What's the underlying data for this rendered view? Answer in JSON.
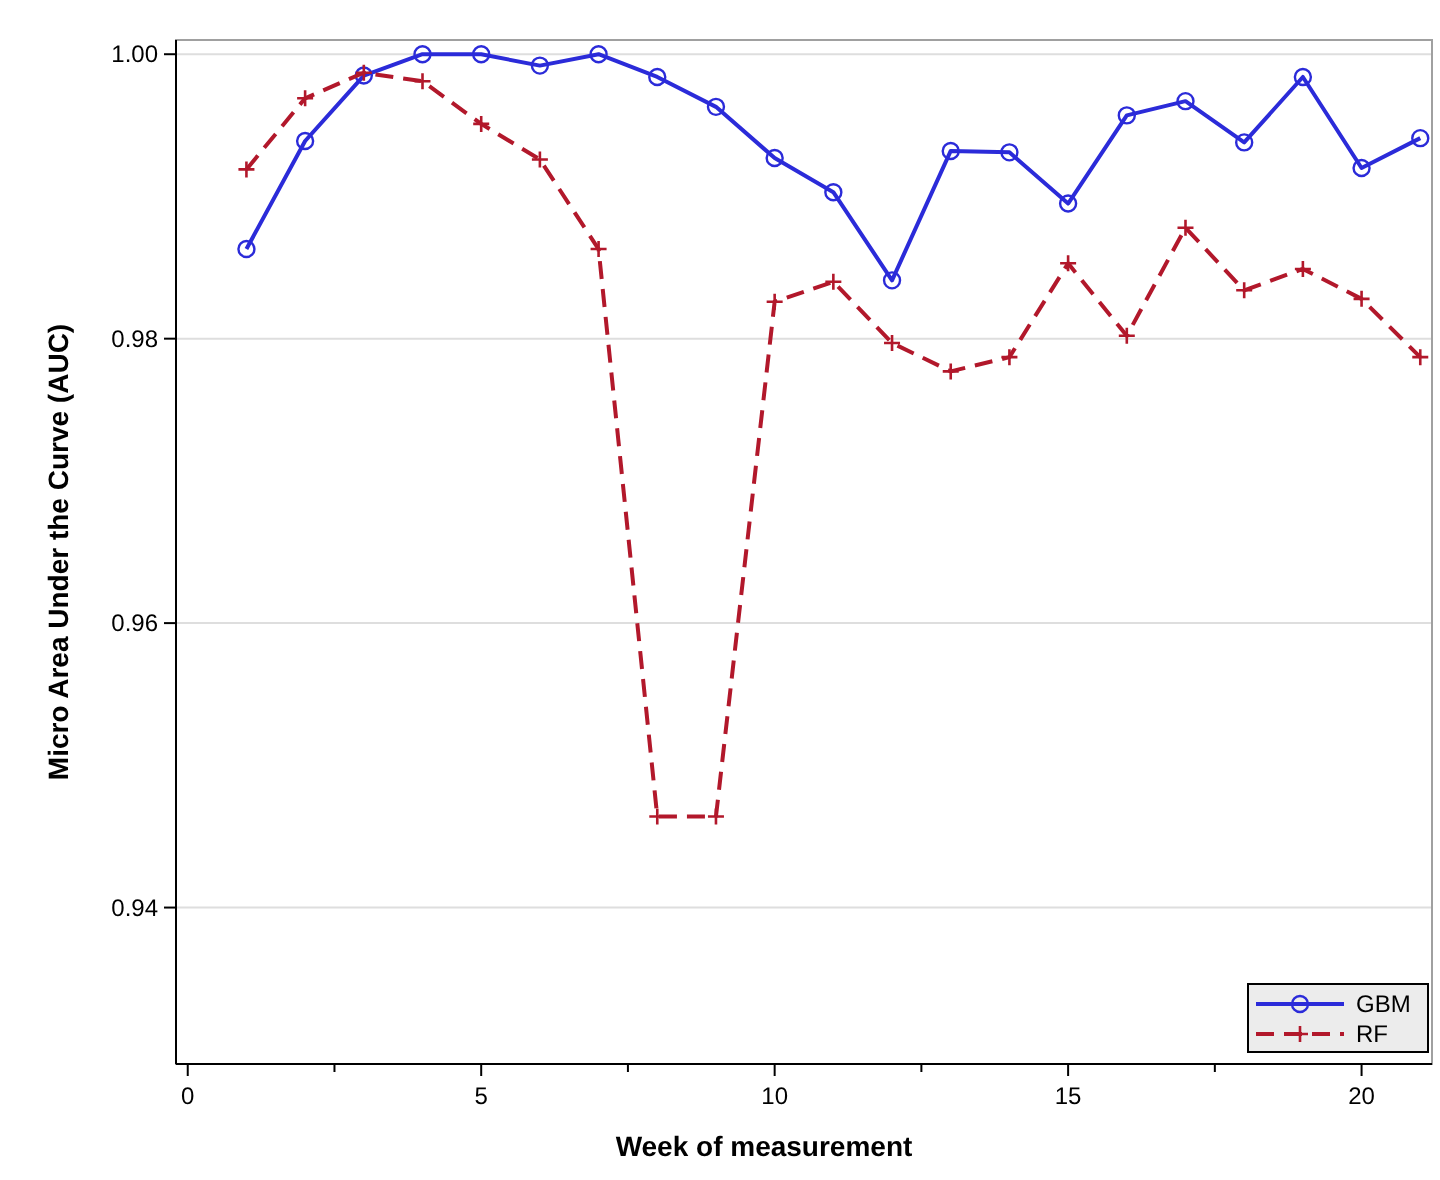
{
  "chart_data": {
    "type": "line",
    "xlabel": "Week of measurement",
    "ylabel": "Micro Area Under the Curve (AUC)",
    "x": [
      1,
      2,
      3,
      4,
      5,
      6,
      7,
      8,
      9,
      10,
      11,
      12,
      13,
      14,
      15,
      16,
      17,
      18,
      19,
      20,
      21
    ],
    "series": [
      {
        "name": "GBM",
        "color": "#2b2bd9",
        "marker": "circle",
        "line_style": "solid",
        "values": [
          0.9863,
          0.9939,
          0.9985,
          1.0,
          1.0,
          0.9992,
          1.0,
          0.9984,
          0.9963,
          0.9927,
          0.9903,
          0.9841,
          0.9932,
          0.9931,
          0.9895,
          0.9957,
          0.9967,
          0.9938,
          0.9984,
          0.992,
          0.9941
        ]
      },
      {
        "name": "RF",
        "color": "#b2182b",
        "marker": "cross",
        "line_style": "dashed",
        "values": [
          0.9919,
          0.9969,
          0.9987,
          0.9981,
          0.9951,
          0.9926,
          0.9863,
          0.9464,
          0.9464,
          0.9826,
          0.984,
          0.9797,
          0.9777,
          0.9787,
          0.9853,
          0.9802,
          0.9878,
          0.9834,
          0.9849,
          0.9828,
          0.9787
        ]
      }
    ],
    "xlim": [
      -0.2,
      21.2
    ],
    "ylim": [
      0.929,
      1.001
    ],
    "xticks": [
      0,
      {
        "value": 2.5,
        "label": null
      },
      5,
      {
        "value": 7.5,
        "label": null
      },
      10,
      {
        "value": 12.5,
        "label": null
      },
      15,
      {
        "value": 17.5,
        "label": null
      },
      20
    ],
    "yticks": [
      0.94,
      0.96,
      0.98,
      {
        "value": 1,
        "label": "1.00"
      }
    ],
    "grid": "y",
    "legend": "bottom right"
  }
}
